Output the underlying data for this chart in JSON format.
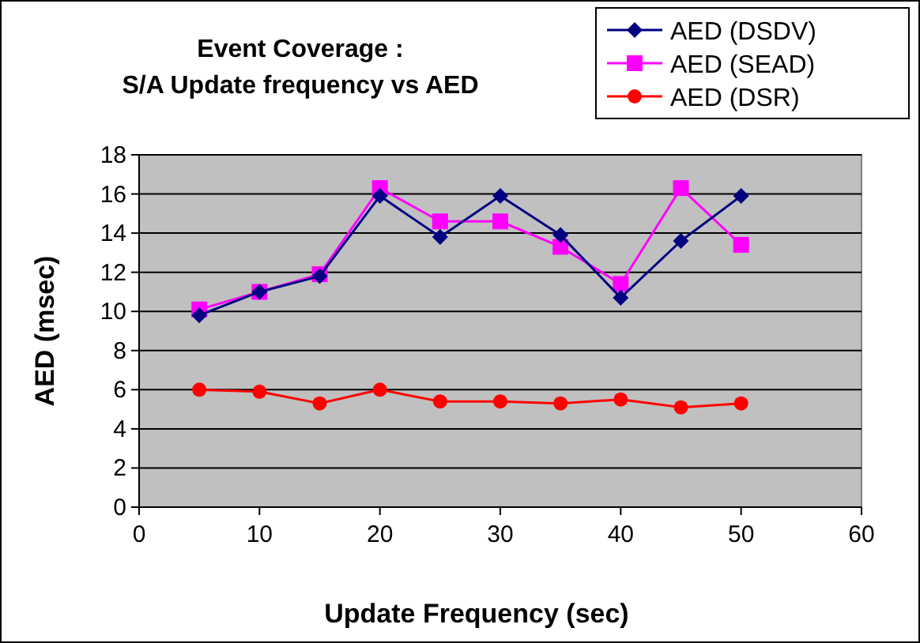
{
  "chart_data": {
    "type": "line",
    "title": "Event Coverage :\nS/A Update frequency vs AED",
    "xlabel": "Update Frequency (sec)",
    "ylabel": "AED (msec)",
    "x": [
      5,
      10,
      15,
      20,
      25,
      30,
      35,
      40,
      45,
      50
    ],
    "series": [
      {
        "name": "AED (DSDV)",
        "color": "#000080",
        "marker": "diamond",
        "values": [
          9.8,
          11,
          11.8,
          15.9,
          13.8,
          15.9,
          13.9,
          10.7,
          13.6,
          15.9
        ]
      },
      {
        "name": "AED (SEAD)",
        "color": "#ff00ff",
        "marker": "square",
        "values": [
          10.1,
          11,
          11.9,
          16.3,
          14.6,
          14.6,
          13.3,
          11.4,
          16.3,
          13.4
        ]
      },
      {
        "name": "AED (DSR)",
        "color": "#ff0000",
        "marker": "circle",
        "values": [
          6.0,
          5.9,
          5.3,
          6.0,
          5.4,
          5.4,
          5.3,
          5.5,
          5.1,
          5.3
        ]
      }
    ],
    "xlim": [
      0,
      60
    ],
    "xticks": [
      0,
      10,
      20,
      30,
      40,
      50,
      60
    ],
    "ylim": [
      0,
      18
    ],
    "yticks": [
      0,
      2,
      4,
      6,
      8,
      10,
      12,
      14,
      16,
      18
    ],
    "grid": "y",
    "legend": "top right"
  }
}
